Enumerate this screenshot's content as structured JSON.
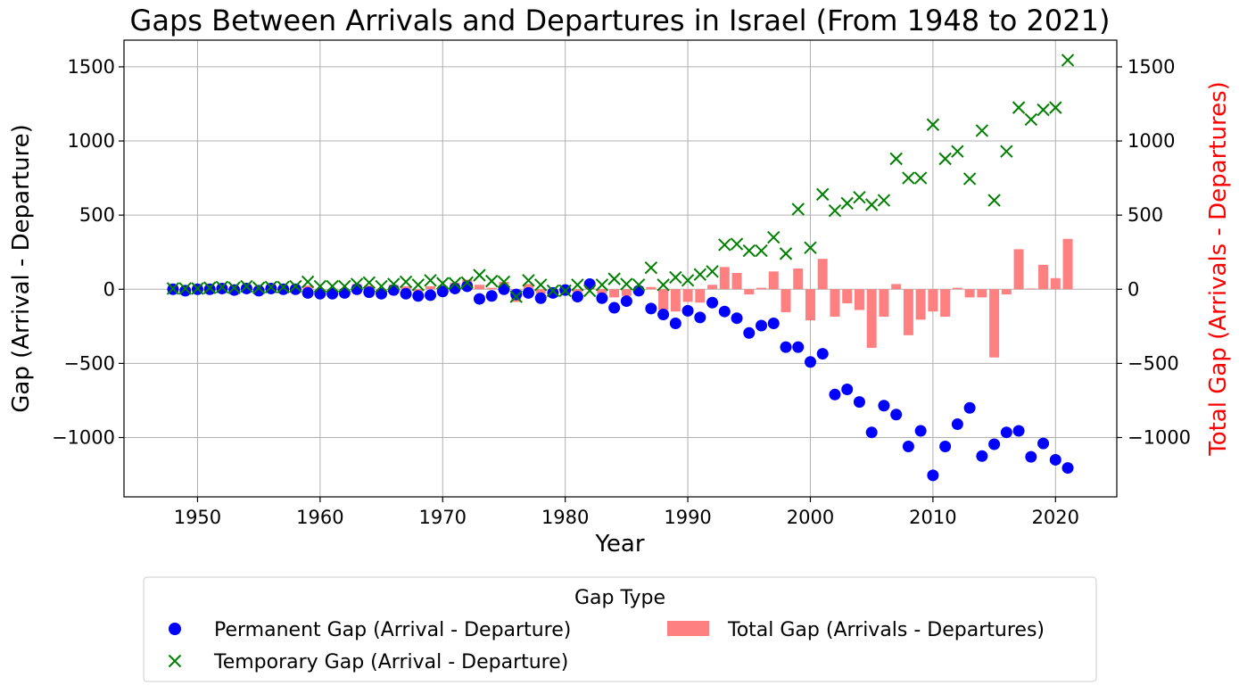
{
  "chart_data": {
    "type": "bar+scatter",
    "title": "Gaps Between Arrivals and Departures in Israel (From 1948 to 2021)",
    "xlabel": "Year",
    "ylabel": "Gap (Arrival - Departure)",
    "ylabel_right": "Total Gap (Arrivals - Departures)",
    "xlim": [
      1944,
      2025
    ],
    "ylim": [
      -1400,
      1680
    ],
    "ylim_right": [
      -1400,
      1680
    ],
    "x_ticks": [
      1950,
      1960,
      1970,
      1980,
      1990,
      2000,
      2010,
      2020
    ],
    "y_ticks": [
      -1000,
      -500,
      0,
      500,
      1000,
      1500
    ],
    "y_tick_labels": [
      "−1000",
      "−500",
      "0",
      "500",
      "1000",
      "1500"
    ],
    "grid": true,
    "legend_position": "below",
    "colors": {
      "permanent": "#0000ff",
      "temporary": "#008000",
      "total": "#ff8080",
      "right_axis": "#ff0000"
    },
    "years": [
      1948,
      1949,
      1950,
      1951,
      1952,
      1953,
      1954,
      1955,
      1956,
      1957,
      1958,
      1959,
      1960,
      1961,
      1962,
      1963,
      1964,
      1965,
      1966,
      1967,
      1968,
      1969,
      1970,
      1971,
      1972,
      1973,
      1974,
      1975,
      1976,
      1977,
      1978,
      1979,
      1980,
      1981,
      1982,
      1983,
      1984,
      1985,
      1986,
      1987,
      1988,
      1989,
      1990,
      1991,
      1992,
      1993,
      1994,
      1995,
      1996,
      1997,
      1998,
      1999,
      2000,
      2001,
      2002,
      2003,
      2004,
      2005,
      2006,
      2007,
      2008,
      2009,
      2010,
      2011,
      2012,
      2013,
      2014,
      2015,
      2016,
      2017,
      2018,
      2019,
      2020,
      2021
    ],
    "series": [
      {
        "name": "Permanent Gap (Arrival - Departure)",
        "marker": "circle",
        "values": [
          0,
          -10,
          0,
          0,
          5,
          -5,
          5,
          -10,
          5,
          0,
          0,
          -25,
          -30,
          -30,
          -25,
          0,
          -20,
          -30,
          -5,
          -30,
          -45,
          -40,
          -15,
          5,
          20,
          -65,
          -45,
          0,
          -35,
          -25,
          -60,
          -25,
          -5,
          -50,
          35,
          -60,
          -125,
          -80,
          -10,
          -130,
          -170,
          -230,
          -145,
          -190,
          -90,
          -150,
          -195,
          -295,
          -245,
          -230,
          -390,
          -390,
          -490,
          -435,
          -710,
          -675,
          -760,
          -965,
          -785,
          -845,
          -1060,
          -955,
          -1255,
          -1060,
          -910,
          -800,
          -1125,
          -1045,
          -965,
          -955,
          -1130,
          -1040,
          -1150,
          -1205
        ]
      },
      {
        "name": "Temporary Gap (Arrival - Departure)",
        "marker": "x",
        "values": [
          5,
          5,
          5,
          10,
          15,
          10,
          20,
          10,
          15,
          15,
          20,
          50,
          20,
          20,
          20,
          35,
          45,
          20,
          35,
          50,
          30,
          60,
          40,
          40,
          45,
          95,
          55,
          50,
          -50,
          60,
          30,
          -10,
          -10,
          30,
          -10,
          30,
          70,
          35,
          30,
          145,
          30,
          80,
          60,
          100,
          120,
          300,
          305,
          260,
          260,
          350,
          240,
          540,
          280,
          640,
          530,
          580,
          620,
          570,
          600,
          880,
          750,
          750,
          1110,
          880,
          930,
          745,
          1070,
          600,
          930,
          1225,
          1145,
          1210,
          1225,
          1545
        ]
      },
      {
        "name": "Total Gap (Arrivals - Departures)",
        "marker": "bar",
        "values": [
          5,
          -5,
          5,
          10,
          20,
          5,
          25,
          0,
          20,
          15,
          20,
          25,
          -10,
          -10,
          -5,
          35,
          25,
          -10,
          30,
          20,
          -15,
          20,
          25,
          45,
          65,
          30,
          10,
          50,
          -85,
          35,
          -30,
          -35,
          -15,
          -20,
          25,
          -30,
          -55,
          -45,
          20,
          15,
          -140,
          -150,
          -85,
          -90,
          30,
          150,
          110,
          -35,
          10,
          120,
          -155,
          140,
          -210,
          205,
          -185,
          -95,
          -140,
          -395,
          -185,
          35,
          -310,
          -205,
          -150,
          -185,
          10,
          -55,
          -55,
          -460,
          -35,
          270,
          5,
          165,
          75,
          340
        ]
      }
    ]
  },
  "legend": {
    "title": "Gap Type",
    "items": [
      {
        "label": "Permanent Gap (Arrival - Departure)"
      },
      {
        "label": "Temporary Gap (Arrival - Departure)"
      },
      {
        "label": "Total Gap (Arrivals - Departures)"
      }
    ]
  }
}
